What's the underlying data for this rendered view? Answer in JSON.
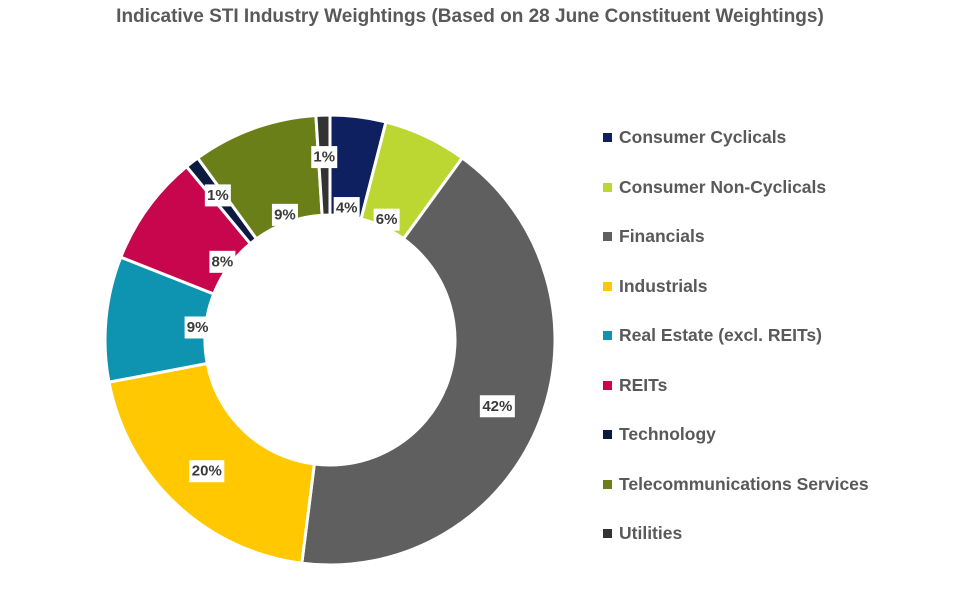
{
  "chart_data": {
    "type": "pie",
    "title": "Indicative STI Industry Weightings (Based on 28 June Constituent Weightings)",
    "donut": true,
    "legend_position": "right",
    "series": [
      {
        "name": "Consumer Cyclicals",
        "value": 4,
        "label": "4%",
        "color": "#0f2060"
      },
      {
        "name": "Consumer Non-Cyclicals",
        "value": 6,
        "label": "6%",
        "color": "#bcd731"
      },
      {
        "name": "Financials",
        "value": 42,
        "label": "42%",
        "color": "#5f5f5f"
      },
      {
        "name": "Industrials",
        "value": 20,
        "label": "20%",
        "color": "#ffc800"
      },
      {
        "name": "Real Estate (excl. REITs)",
        "value": 9,
        "label": "9%",
        "color": "#0e93b0"
      },
      {
        "name": "REITs",
        "value": 8,
        "label": "8%",
        "color": "#c7064e"
      },
      {
        "name": "Technology",
        "value": 1,
        "label": "1%",
        "color": "#0c1a40"
      },
      {
        "name": "Telecommunications Services",
        "value": 9,
        "label": "9%",
        "color": "#6b7f19"
      },
      {
        "name": "Utilities",
        "value": 1,
        "label": "1%",
        "color": "#333333"
      }
    ]
  }
}
